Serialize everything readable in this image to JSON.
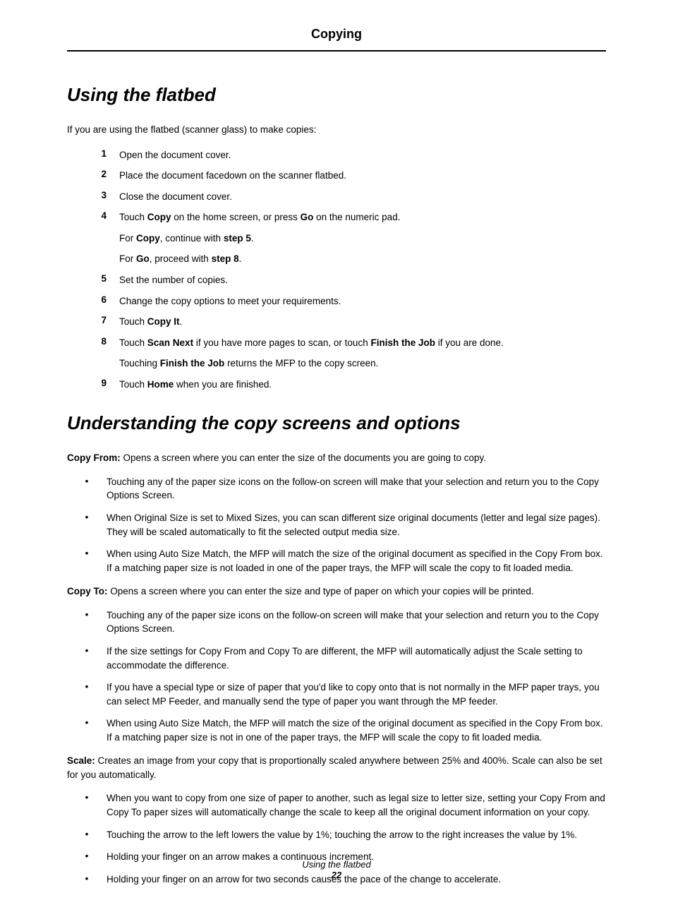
{
  "chapter": "Copying",
  "h1_a": "Using the flatbed",
  "intro_a": "If you are using the flatbed (scanner glass) to make copies:",
  "steps": [
    {
      "n": "1",
      "segs": [
        {
          "t": "Open the document cover."
        }
      ]
    },
    {
      "n": "2",
      "segs": [
        {
          "t": "Place the document facedown on the scanner flatbed."
        }
      ]
    },
    {
      "n": "3",
      "segs": [
        {
          "t": "Close the document cover."
        }
      ]
    },
    {
      "n": "4",
      "segs": [
        {
          "t": "Touch "
        },
        {
          "t": "Copy",
          "b": true
        },
        {
          "t": " on the home screen, or press "
        },
        {
          "t": "Go",
          "b": true
        },
        {
          "t": " on the numeric pad."
        }
      ],
      "subs": [
        [
          {
            "t": "For "
          },
          {
            "t": "Copy",
            "b": true
          },
          {
            "t": ", continue with "
          },
          {
            "t": "step 5",
            "b": true
          },
          {
            "t": "."
          }
        ],
        [
          {
            "t": "For "
          },
          {
            "t": "Go",
            "b": true
          },
          {
            "t": ", proceed with "
          },
          {
            "t": "step 8",
            "b": true
          },
          {
            "t": "."
          }
        ]
      ]
    },
    {
      "n": "5",
      "segs": [
        {
          "t": "Set the number of copies."
        }
      ]
    },
    {
      "n": "6",
      "segs": [
        {
          "t": "Change the copy options to meet your requirements."
        }
      ]
    },
    {
      "n": "7",
      "segs": [
        {
          "t": "Touch "
        },
        {
          "t": "Copy It",
          "b": true
        },
        {
          "t": "."
        }
      ]
    },
    {
      "n": "8",
      "segs": [
        {
          "t": "Touch "
        },
        {
          "t": "Scan Next",
          "b": true
        },
        {
          "t": " if you have more pages to scan, or touch "
        },
        {
          "t": "Finish the Job",
          "b": true
        },
        {
          "t": " if you are done."
        }
      ],
      "subs": [
        [
          {
            "t": "Touching "
          },
          {
            "t": "Finish the Job",
            "b": true
          },
          {
            "t": " returns the MFP to the copy screen."
          }
        ]
      ]
    },
    {
      "n": "9",
      "segs": [
        {
          "t": "Touch "
        },
        {
          "t": "Home",
          "b": true
        },
        {
          "t": " when you are finished."
        }
      ]
    }
  ],
  "h1_b": "Understanding the copy screens and options",
  "defs": [
    {
      "lead_b": "Copy From:",
      "lead_t": " Opens a screen where you can enter the size of the documents you are going to copy.",
      "bullets": [
        "Touching any of the paper size icons on the follow-on screen will make that your selection and return you to the Copy Options Screen.",
        "When Original Size is set to Mixed Sizes, you can scan different size original documents (letter and legal size pages). They will be scaled automatically to fit the selected output media size.",
        "When using Auto Size Match, the MFP will match the size of the original document as specified in the Copy From box. If a matching paper size is not loaded in one of the paper trays, the MFP will scale the copy to fit loaded media."
      ]
    },
    {
      "lead_b": "Copy To:",
      "lead_t": " Opens a screen where you can enter the size and type of paper on which your copies will be printed.",
      "bullets": [
        "Touching any of the paper size icons on the follow-on screen will make that your selection and return you to the Copy Options Screen.",
        "If the size settings for Copy From and Copy To are different, the MFP will automatically adjust the Scale setting to accommodate the difference.",
        "If you have a special type or size of paper that you'd like to copy onto that is not normally in the MFP paper trays, you can select MP Feeder, and manually send the type of paper you want through the MP feeder.",
        "When using Auto Size Match, the MFP will match the size of the original document as specified in the Copy From box. If a matching paper size is not in one of the paper trays, the MFP will scale the copy to fit loaded media."
      ]
    },
    {
      "lead_b": "Scale:",
      "lead_t": " Creates an image from your copy that is proportionally scaled anywhere between 25% and 400%. Scale can also be set for you automatically.",
      "bullets": [
        "When you want to copy from one size of paper to another, such as legal size to letter size, setting your Copy From and Copy To paper sizes will automatically change the scale to keep all the original document information on your copy.",
        "Touching the arrow to the left lowers the value by 1%; touching the arrow to the right increases the value by 1%.",
        "Holding your finger on an arrow makes a continuous increment.",
        "Holding your finger on an arrow for two seconds causes the pace of the change to accelerate."
      ]
    }
  ],
  "footer_title": "Using the flatbed",
  "footer_page": "22"
}
